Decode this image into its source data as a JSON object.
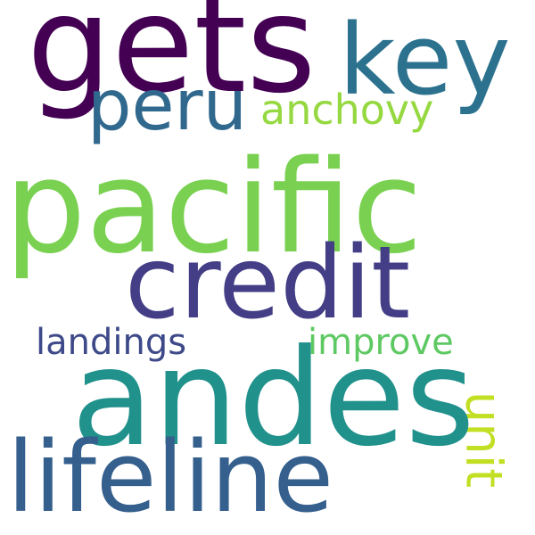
{
  "words": [
    {
      "text": "gets",
      "color": "#440154"
    },
    {
      "text": "key",
      "color": "#2c728e"
    },
    {
      "text": "peru",
      "color": "#31688e"
    },
    {
      "text": "anchovy",
      "color": "#95d840"
    },
    {
      "text": "pacific",
      "color": "#7ad151"
    },
    {
      "text": "credit",
      "color": "#433e85"
    },
    {
      "text": "landings",
      "color": "#3e4989"
    },
    {
      "text": "improve",
      "color": "#5ec962"
    },
    {
      "text": "unit",
      "color": "#c2df23"
    },
    {
      "text": "andes",
      "color": "#21918c"
    },
    {
      "text": "lifeline",
      "color": "#355f8d"
    }
  ]
}
